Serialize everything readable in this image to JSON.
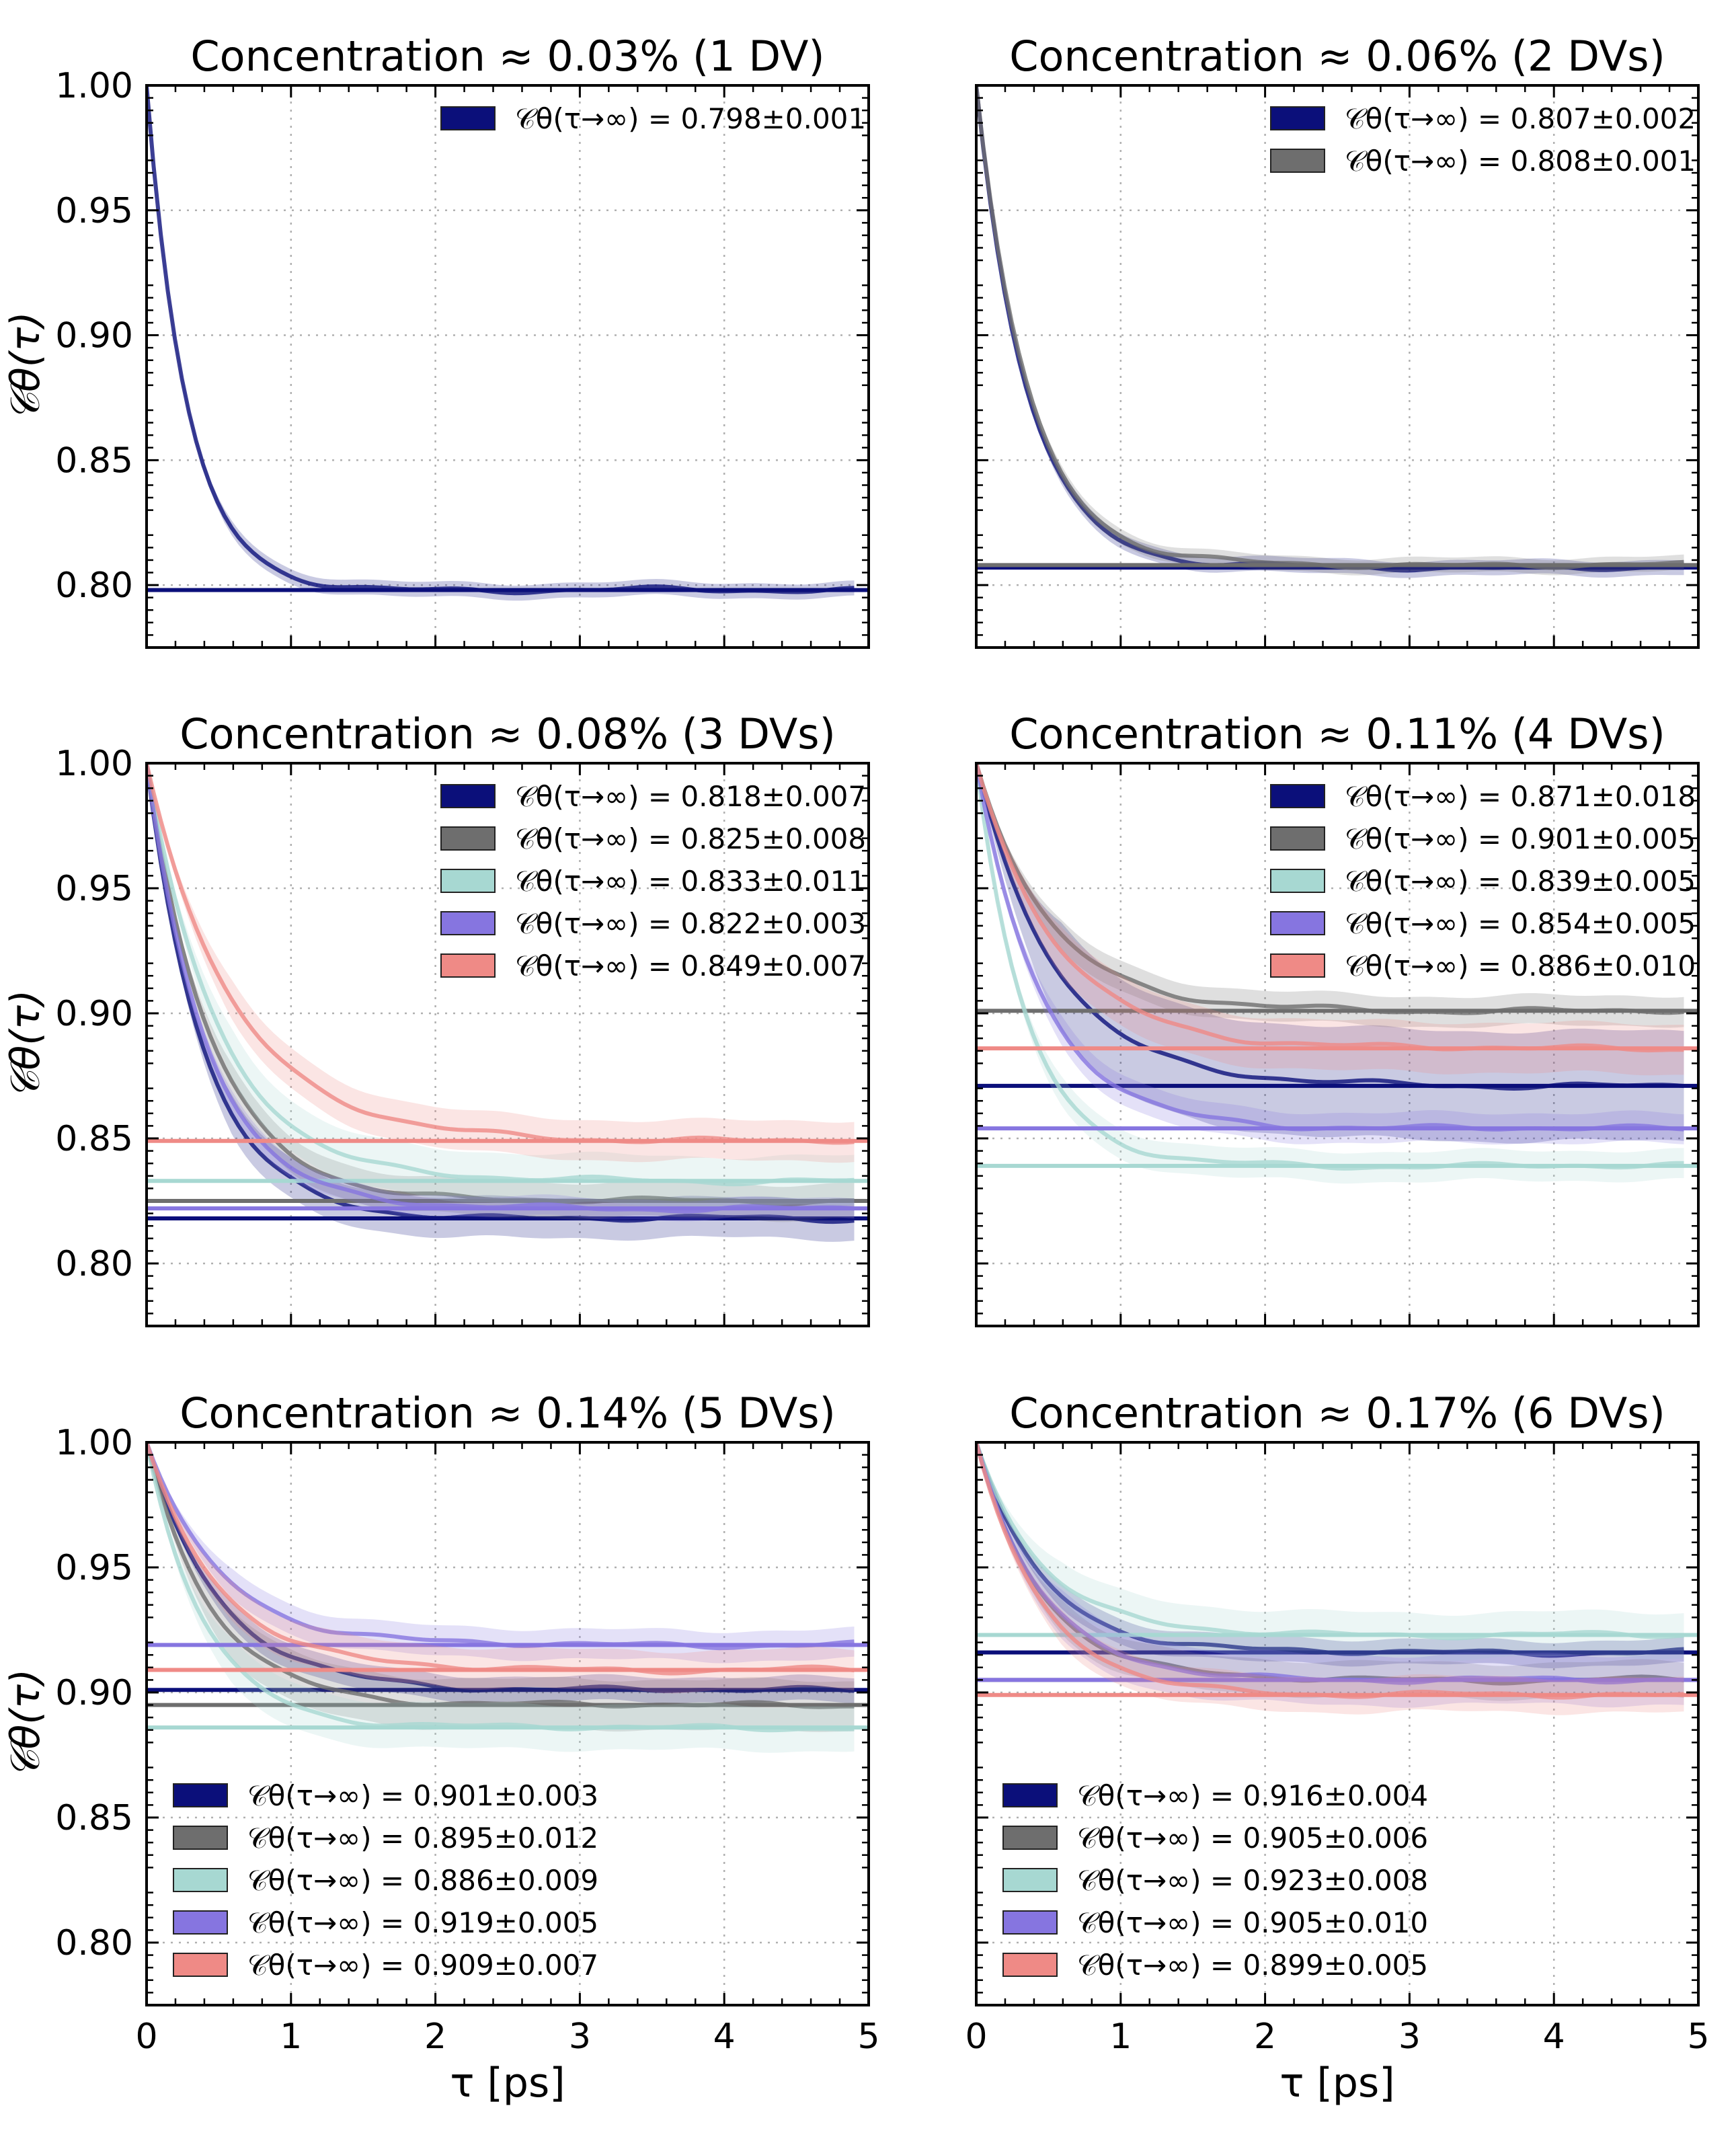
{
  "figure": {
    "y_axis_label": "𝒞θ(τ)",
    "x_axis_label": "τ [ps]",
    "colors": {
      "navy": "#0b0f7a",
      "gray": "#6e6e6e",
      "teal": "#a7d8d2",
      "purple": "#8675e0",
      "salmon": "#ef8a86"
    }
  },
  "chart_data": [
    {
      "type": "line",
      "title": "Concentration ≈ 0.03% (1 DV)",
      "xlim": [
        0,
        5
      ],
      "ylim": [
        0.775,
        1.0
      ],
      "xticks": [
        "0",
        "1",
        "2",
        "3",
        "4",
        "5"
      ],
      "yticks": [
        "0.80",
        "0.85",
        "0.90",
        "0.95",
        "1.00"
      ],
      "legend_position": "top-right",
      "series": [
        {
          "color": "navy",
          "label": "𝒞θ(τ→∞) = 0.798±0.001",
          "plateau": 0.798,
          "tau": 0.28,
          "band": 0.003
        }
      ]
    },
    {
      "type": "line",
      "title": "Concentration ≈ 0.06% (2 DVs)",
      "xlim": [
        0,
        5
      ],
      "ylim": [
        0.775,
        1.0
      ],
      "xticks": [
        "0",
        "1",
        "2",
        "3",
        "4",
        "5"
      ],
      "yticks": [
        "0.80",
        "0.85",
        "0.90",
        "0.95",
        "1.00"
      ],
      "legend_position": "top-right",
      "series": [
        {
          "color": "navy",
          "label": "𝒞θ(τ→∞) = 0.807±0.002",
          "plateau": 0.807,
          "tau": 0.35,
          "band": 0.003
        },
        {
          "color": "gray",
          "label": "𝒞θ(τ→∞) = 0.808±0.001",
          "plateau": 0.808,
          "tau": 0.36,
          "band": 0.003
        }
      ]
    },
    {
      "type": "line",
      "title": "Concentration ≈ 0.08% (3 DVs)",
      "xlim": [
        0,
        5
      ],
      "ylim": [
        0.775,
        1.0
      ],
      "xticks": [
        "0",
        "1",
        "2",
        "3",
        "4",
        "5"
      ],
      "yticks": [
        "0.80",
        "0.85",
        "0.90",
        "0.95",
        "1.00"
      ],
      "legend_position": "top-right",
      "series": [
        {
          "color": "navy",
          "label": "𝒞θ(τ→∞) = 0.818±0.007",
          "plateau": 0.818,
          "tau": 0.4,
          "band": 0.008
        },
        {
          "color": "gray",
          "label": "𝒞θ(τ→∞) = 0.825±0.008",
          "plateau": 0.825,
          "tau": 0.45,
          "band": 0.007
        },
        {
          "color": "teal",
          "label": "𝒞θ(τ→∞) = 0.833±0.011",
          "plateau": 0.833,
          "tau": 0.5,
          "band": 0.01
        },
        {
          "color": "purple",
          "label": "𝒞θ(τ→∞) = 0.822±0.003",
          "plateau": 0.822,
          "tau": 0.42,
          "band": 0.004
        },
        {
          "color": "salmon",
          "label": "𝒞θ(τ→∞) = 0.849±0.007",
          "plateau": 0.849,
          "tau": 0.6,
          "band": 0.008
        }
      ]
    },
    {
      "type": "line",
      "title": "Concentration ≈ 0.11% (4 DVs)",
      "xlim": [
        0,
        5
      ],
      "ylim": [
        0.775,
        1.0
      ],
      "xticks": [
        "0",
        "1",
        "2",
        "3",
        "4",
        "5"
      ],
      "yticks": [
        "0.80",
        "0.85",
        "0.90",
        "0.95",
        "1.00"
      ],
      "legend_position": "top-right",
      "series": [
        {
          "color": "navy",
          "label": "𝒞θ(τ→∞) = 0.871±0.018",
          "plateau": 0.871,
          "tau": 0.55,
          "band": 0.022
        },
        {
          "color": "gray",
          "label": "𝒞θ(τ→∞) = 0.901±0.005",
          "plateau": 0.901,
          "tau": 0.5,
          "band": 0.006
        },
        {
          "color": "teal",
          "label": "𝒞θ(τ→∞) = 0.839±0.005",
          "plateau": 0.839,
          "tau": 0.35,
          "band": 0.006
        },
        {
          "color": "purple",
          "label": "𝒞θ(τ→∞) = 0.854±0.005",
          "plateau": 0.854,
          "tau": 0.45,
          "band": 0.006
        },
        {
          "color": "salmon",
          "label": "𝒞θ(τ→∞) = 0.886±0.010",
          "plateau": 0.886,
          "tau": 0.55,
          "band": 0.01
        }
      ]
    },
    {
      "type": "line",
      "title": "Concentration ≈ 0.14% (5 DVs)",
      "xlim": [
        0,
        5
      ],
      "ylim": [
        0.775,
        1.0
      ],
      "xticks": [
        "0",
        "1",
        "2",
        "3",
        "4",
        "5"
      ],
      "yticks": [
        "0.80",
        "0.85",
        "0.90",
        "0.95",
        "1.00"
      ],
      "legend_position": "bottom-left",
      "series": [
        {
          "color": "navy",
          "label": "𝒞θ(τ→∞) = 0.901±0.003",
          "plateau": 0.901,
          "tau": 0.5,
          "band": 0.005
        },
        {
          "color": "gray",
          "label": "𝒞θ(τ→∞) = 0.895±0.012",
          "plateau": 0.895,
          "tau": 0.45,
          "band": 0.01
        },
        {
          "color": "teal",
          "label": "𝒞θ(τ→∞) = 0.886±0.009",
          "plateau": 0.886,
          "tau": 0.4,
          "band": 0.009
        },
        {
          "color": "purple",
          "label": "𝒞θ(τ→∞) = 0.919±0.005",
          "plateau": 0.919,
          "tau": 0.5,
          "band": 0.006
        },
        {
          "color": "salmon",
          "label": "𝒞θ(τ→∞) = 0.909±0.007",
          "plateau": 0.909,
          "tau": 0.5,
          "band": 0.008
        }
      ]
    },
    {
      "type": "line",
      "title": "Concentration ≈ 0.17% (6 DVs)",
      "xlim": [
        0,
        5
      ],
      "ylim": [
        0.775,
        1.0
      ],
      "xticks": [
        "0",
        "1",
        "2",
        "3",
        "4",
        "5"
      ],
      "yticks": [
        "0.80",
        "0.85",
        "0.90",
        "0.95",
        "1.00"
      ],
      "legend_position": "bottom-left",
      "series": [
        {
          "color": "navy",
          "label": "𝒞θ(τ→∞) = 0.916±0.004",
          "plateau": 0.916,
          "tau": 0.45,
          "band": 0.005
        },
        {
          "color": "gray",
          "label": "𝒞θ(τ→∞) = 0.905±0.006",
          "plateau": 0.905,
          "tau": 0.45,
          "band": 0.007
        },
        {
          "color": "teal",
          "label": "𝒞θ(τ→∞) = 0.923±0.008",
          "plateau": 0.923,
          "tau": 0.45,
          "band": 0.009
        },
        {
          "color": "purple",
          "label": "𝒞θ(τ→∞) = 0.905±0.010",
          "plateau": 0.905,
          "tau": 0.45,
          "band": 0.01
        },
        {
          "color": "salmon",
          "label": "𝒞θ(τ→∞) = 0.899±0.005",
          "plateau": 0.899,
          "tau": 0.45,
          "band": 0.007
        }
      ]
    }
  ]
}
